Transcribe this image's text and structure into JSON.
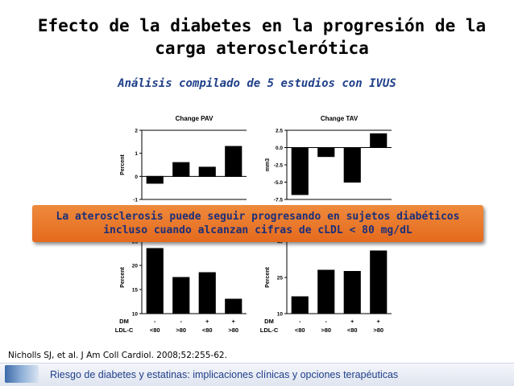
{
  "title": [
    "Efecto de la diabetes en la progresión de la",
    "carga aterosclerótica"
  ],
  "subtitle": "Análisis compilado de 5 estudios con IVUS",
  "banner": [
    "La aterosclerosis puede seguir progresando en sujetos diabéticos",
    "incluso cuando alcanzan cifras de cLDL < 80 mg/dL"
  ],
  "citation": "Nicholls SJ, et al. J Am Coll Cardiol. 2008;52:255-62.",
  "footer": "Riesgo de diabetes y estatinas: implicaciones clínicas y opciones terapéuticas",
  "row_labels": {
    "dm": "DM",
    "ldl": "LDL-C"
  },
  "group_labels": {
    "dm": [
      "-",
      "-",
      "+",
      "+"
    ],
    "ldl": [
      "<80",
      ">80",
      "<80",
      ">80"
    ]
  },
  "colors": {
    "banner": "#e8782a",
    "bars": "#000000",
    "title_blue": "#1f3f8a"
  },
  "chart_data": [
    {
      "type": "bar",
      "title": "Change PAV",
      "ylabel": "Percent",
      "ylim": [
        -1,
        2
      ],
      "yticks": [
        -1,
        0,
        1,
        2
      ],
      "categories": [
        "DM - LDL-C <80",
        "DM - LDL-C >80",
        "DM + LDL-C <80",
        "DM + LDL-C >80"
      ],
      "values": [
        -0.3,
        0.6,
        0.4,
        1.3
      ]
    },
    {
      "type": "bar",
      "title": "Change TAV",
      "ylabel": "mm3",
      "ylim": [
        -7.5,
        2.5
      ],
      "yticks": [
        -7.5,
        -5.0,
        -2.5,
        0.0,
        2.5
      ],
      "categories": [
        "DM - LDL-C <80",
        "DM - LDL-C >80",
        "DM + LDL-C <80",
        "DM + LDL-C >80"
      ],
      "values": [
        -6.8,
        -1.3,
        -5.0,
        2.0
      ]
    },
    {
      "type": "bar",
      "title": "",
      "ylabel": "Percent",
      "ylim": [
        10,
        25
      ],
      "yticks": [
        10,
        15,
        20,
        25
      ],
      "categories": [
        "DM - LDL-C <80",
        "DM - LDL-C >80",
        "DM + LDL-C <80",
        "DM + LDL-C >80"
      ],
      "values": [
        23.5,
        17.5,
        18.5,
        13.0
      ]
    },
    {
      "type": "bar",
      "title": "",
      "ylabel": "Percent",
      "ylim": [
        10,
        40
      ],
      "yticks": [
        10,
        25,
        40
      ],
      "categories": [
        "DM - LDL-C <80",
        "DM - LDL-C >80",
        "DM + LDL-C <80",
        "DM + LDL-C >80"
      ],
      "values": [
        17,
        28,
        27.5,
        36
      ]
    }
  ]
}
